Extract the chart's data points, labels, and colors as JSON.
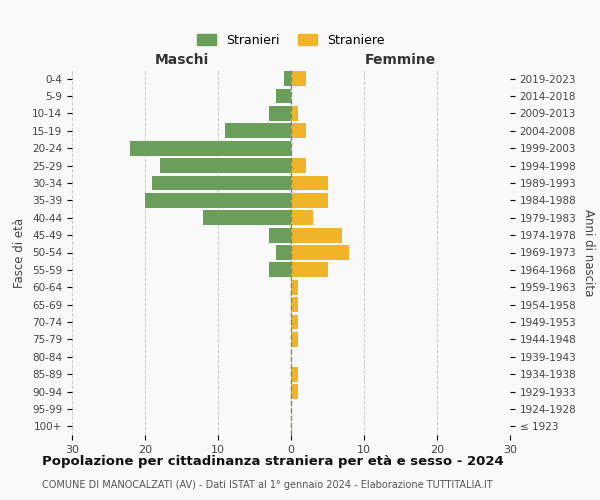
{
  "age_groups": [
    "100+",
    "95-99",
    "90-94",
    "85-89",
    "80-84",
    "75-79",
    "70-74",
    "65-69",
    "60-64",
    "55-59",
    "50-54",
    "45-49",
    "40-44",
    "35-39",
    "30-34",
    "25-29",
    "20-24",
    "15-19",
    "10-14",
    "5-9",
    "0-4"
  ],
  "birth_years": [
    "≤ 1923",
    "1924-1928",
    "1929-1933",
    "1934-1938",
    "1939-1943",
    "1944-1948",
    "1949-1953",
    "1954-1958",
    "1959-1963",
    "1964-1968",
    "1969-1973",
    "1974-1978",
    "1979-1983",
    "1984-1988",
    "1989-1993",
    "1994-1998",
    "1999-2003",
    "2004-2008",
    "2009-2013",
    "2014-2018",
    "2019-2023"
  ],
  "males": [
    0,
    0,
    0,
    0,
    0,
    0,
    0,
    0,
    0,
    3,
    2,
    3,
    12,
    20,
    19,
    18,
    22,
    9,
    3,
    2,
    1
  ],
  "females": [
    0,
    0,
    1,
    1,
    0,
    1,
    1,
    1,
    1,
    5,
    8,
    7,
    3,
    5,
    5,
    2,
    0,
    2,
    1,
    0,
    2
  ],
  "male_color": "#6a9e5a",
  "female_color": "#f0b429",
  "background_color": "#f9f9f9",
  "grid_color": "#cccccc",
  "title": "Popolazione per cittadinanza straniera per età e sesso - 2024",
  "subtitle": "COMUNE DI MANOCALZATI (AV) - Dati ISTAT al 1° gennaio 2024 - Elaborazione TUTTITALIA.IT",
  "xlabel_left": "Maschi",
  "xlabel_right": "Femmine",
  "ylabel_left": "Fasce di età",
  "ylabel_right": "Anni di nascita",
  "legend_male": "Stranieri",
  "legend_female": "Straniere",
  "xlim": 30,
  "bar_height": 0.85
}
